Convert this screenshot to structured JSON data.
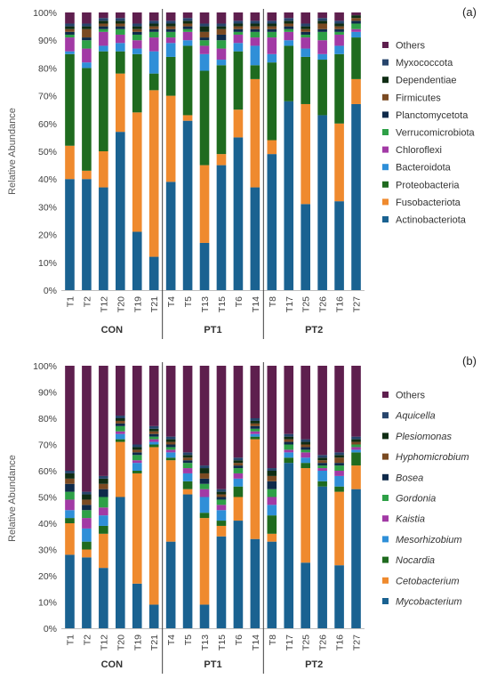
{
  "chart_data": [
    {
      "type": "bar",
      "stacked": true,
      "panel_label": "(a)",
      "ylabel": "Relative Abundance",
      "ylim": [
        0,
        100
      ],
      "yticks": [
        "0%",
        "10%",
        "20%",
        "30%",
        "40%",
        "50%",
        "60%",
        "70%",
        "80%",
        "90%",
        "100%"
      ],
      "categories": [
        "T1",
        "T2",
        "T12",
        "T20",
        "T19",
        "T21",
        "T4",
        "T5",
        "T13",
        "T15",
        "T6",
        "T14",
        "T8",
        "T17",
        "T25",
        "T26",
        "T16",
        "T27"
      ],
      "groups": [
        {
          "label": "CON",
          "start": 0,
          "end": 5
        },
        {
          "label": "PT1",
          "start": 6,
          "end": 11
        },
        {
          "label": "PT2",
          "start": 12,
          "end": 17
        }
      ],
      "legend_italic": false,
      "legend_position": "right",
      "series": [
        {
          "name": "Actinobacteriota",
          "color": "#1a6291",
          "values": [
            40,
            40,
            37,
            57,
            21,
            12,
            39,
            61,
            17,
            45,
            55,
            37,
            49,
            68,
            31,
            63,
            32,
            67
          ]
        },
        {
          "name": "Fusobacteriota",
          "color": "#ef8a2e",
          "values": [
            12,
            3,
            13,
            21,
            43,
            60,
            31,
            2,
            28,
            4,
            10,
            39,
            5,
            0,
            36,
            0,
            28,
            9
          ]
        },
        {
          "name": "Proteobacteria",
          "color": "#1f6b1f",
          "values": [
            33,
            37,
            36,
            8,
            21,
            6,
            14,
            25,
            34,
            32,
            21,
            5,
            28,
            20,
            17,
            20,
            25,
            15
          ]
        },
        {
          "name": "Bacteroidota",
          "color": "#2f8fd8",
          "values": [
            1,
            2,
            2,
            3,
            2,
            8,
            5,
            2,
            6,
            2,
            3,
            7,
            3,
            2,
            3,
            2,
            3,
            2
          ]
        },
        {
          "name": "Chloroflexi",
          "color": "#a23aa5",
          "values": [
            5,
            5,
            5,
            3,
            3,
            5,
            2,
            3,
            3,
            4,
            3,
            3,
            6,
            3,
            4,
            5,
            4,
            1
          ]
        },
        {
          "name": "Verrucomicrobiota",
          "color": "#2ea047",
          "values": [
            1,
            3,
            1,
            2,
            2,
            2,
            2,
            1,
            2,
            3,
            1,
            2,
            2,
            1,
            1,
            3,
            1,
            2
          ]
        },
        {
          "name": "Planctomycetota",
          "color": "#0e2a4a",
          "values": [
            1,
            1,
            1,
            1,
            1,
            1,
            1,
            1,
            1,
            2,
            1,
            1,
            1,
            1,
            1,
            1,
            1,
            1
          ]
        },
        {
          "name": "Firmicutes",
          "color": "#7a4a22",
          "values": [
            1,
            3,
            1,
            1,
            1,
            1,
            1,
            1,
            2,
            2,
            1,
            1,
            1,
            1,
            1,
            2,
            1,
            1
          ]
        },
        {
          "name": "Dependentiae",
          "color": "#0f2d14",
          "values": [
            1,
            1,
            1,
            1,
            1,
            1,
            1,
            1,
            2,
            1,
            1,
            1,
            1,
            1,
            1,
            1,
            1,
            1
          ]
        },
        {
          "name": "Myxococcota",
          "color": "#27456c",
          "values": [
            1,
            1,
            1,
            1,
            1,
            1,
            1,
            1,
            1,
            1,
            1,
            1,
            1,
            1,
            1,
            1,
            1,
            0
          ]
        },
        {
          "name": "Others",
          "color": "#5e1f4e",
          "values": [
            4,
            4,
            2,
            2,
            4,
            3,
            3,
            2,
            4,
            4,
            3,
            3,
            3,
            2,
            4,
            2,
            3,
            1
          ]
        }
      ]
    },
    {
      "type": "bar",
      "stacked": true,
      "panel_label": "(b)",
      "ylabel": "Relative Abundance",
      "ylim": [
        0,
        100
      ],
      "yticks": [
        "0%",
        "10%",
        "20%",
        "30%",
        "40%",
        "50%",
        "60%",
        "70%",
        "80%",
        "90%",
        "100%"
      ],
      "categories": [
        "T1",
        "T2",
        "T12",
        "T20",
        "T19",
        "T21",
        "T4",
        "T5",
        "T13",
        "T15",
        "T6",
        "T14",
        "T8",
        "T17",
        "T25",
        "T26",
        "T16",
        "T27"
      ],
      "groups": [
        {
          "label": "CON",
          "start": 0,
          "end": 5
        },
        {
          "label": "PT1",
          "start": 6,
          "end": 11
        },
        {
          "label": "PT2",
          "start": 12,
          "end": 17
        }
      ],
      "legend_italic": true,
      "legend_position": "right",
      "series": [
        {
          "name": "Mycobacterium",
          "color": "#1a6291",
          "values": [
            28,
            27,
            23,
            50,
            17,
            9,
            33,
            51,
            9,
            35,
            41,
            34,
            33,
            63,
            25,
            54,
            24,
            53
          ]
        },
        {
          "name": "Cetobacterium",
          "color": "#ef8a2e",
          "values": [
            12,
            3,
            13,
            21,
            42,
            60,
            31,
            2,
            33,
            4,
            9,
            38,
            3,
            0,
            36,
            0,
            28,
            9
          ]
        },
        {
          "name": "Nocardia",
          "color": "#1f6b1f",
          "values": [
            2,
            3,
            3,
            1,
            1,
            1,
            1,
            3,
            2,
            2,
            4,
            1,
            7,
            2,
            2,
            2,
            2,
            5
          ]
        },
        {
          "name": "Mesorhizobium",
          "color": "#2f8fd8",
          "values": [
            3,
            5,
            4,
            2,
            3,
            1,
            2,
            3,
            6,
            4,
            3,
            1,
            4,
            2,
            2,
            4,
            4,
            1
          ]
        },
        {
          "name": "Kaistia",
          "color": "#a23aa5",
          "values": [
            4,
            4,
            3,
            1,
            1,
            1,
            1,
            2,
            3,
            2,
            2,
            1,
            3,
            1,
            2,
            1,
            2,
            1
          ]
        },
        {
          "name": "Gordonia",
          "color": "#2ea047",
          "values": [
            3,
            3,
            4,
            2,
            2,
            1,
            1,
            2,
            2,
            2,
            2,
            1,
            3,
            2,
            1,
            1,
            2,
            1
          ]
        },
        {
          "name": "Bosea",
          "color": "#0e2a4a",
          "values": [
            3,
            2,
            3,
            1,
            1,
            1,
            1,
            1,
            2,
            1,
            1,
            1,
            3,
            1,
            1,
            1,
            1,
            0
          ]
        },
        {
          "name": "Hyphomicrobium",
          "color": "#7a4a22",
          "values": [
            2,
            2,
            2,
            1,
            1,
            1,
            1,
            1,
            2,
            1,
            1,
            1,
            2,
            1,
            1,
            1,
            2,
            1
          ]
        },
        {
          "name": "Plesiomonas",
          "color": "#0f2d14",
          "values": [
            2,
            2,
            2,
            1,
            1,
            1,
            1,
            1,
            2,
            1,
            1,
            1,
            2,
            1,
            1,
            1,
            1,
            1
          ]
        },
        {
          "name": "Aquicella",
          "color": "#27456c",
          "values": [
            1,
            1,
            1,
            1,
            1,
            1,
            1,
            1,
            1,
            1,
            1,
            1,
            1,
            1,
            1,
            1,
            1,
            1
          ]
        },
        {
          "name": "Others",
          "color": "#5e1f4e",
          "values": [
            40,
            48,
            42,
            19,
            30,
            23,
            27,
            33,
            38,
            47,
            35,
            20,
            39,
            26,
            28,
            34,
            33,
            27
          ]
        }
      ]
    }
  ]
}
